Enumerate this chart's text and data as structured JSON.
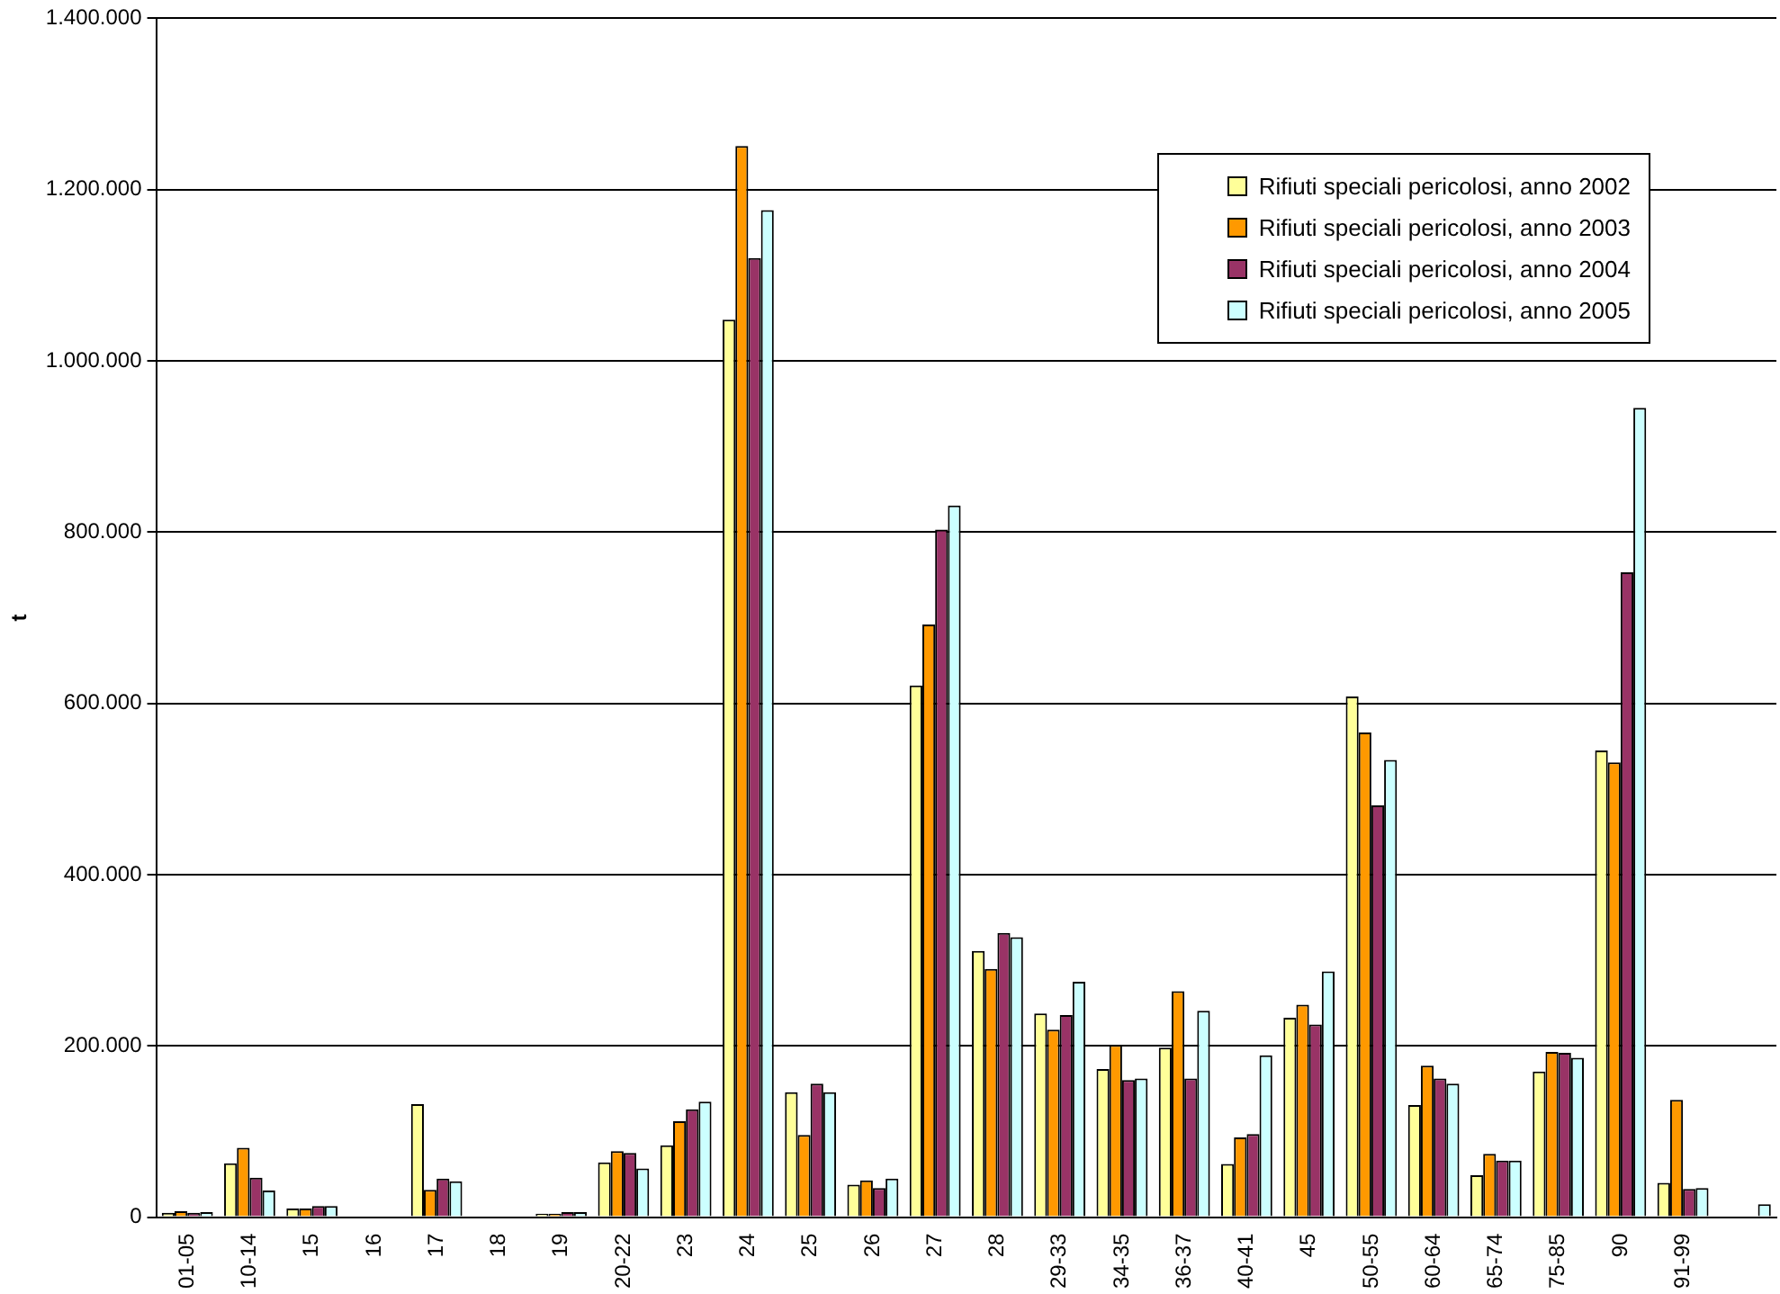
{
  "chart_data": {
    "type": "bar",
    "ylabel": "t",
    "categories": [
      "01-05",
      "10-14",
      "15",
      "16",
      "17",
      "18",
      "19",
      "20-22",
      "23",
      "24",
      "25",
      "26",
      "27",
      "28",
      "29-33",
      "34-35",
      "36-37",
      "40-41",
      "45",
      "50-55",
      "60-64",
      "65-74",
      "75-85",
      "90",
      "91-99",
      null
    ],
    "series": [
      {
        "name": "Rifiuti speciali pericolosi, anno 2002",
        "color": "#ffff99",
        "values": [
          5000,
          63000,
          10000,
          0,
          132000,
          null,
          4000,
          64000,
          84000,
          1048000,
          146000,
          38000,
          621000,
          311000,
          238000,
          173000,
          198000,
          62000,
          233000,
          608000,
          131000,
          49000,
          170000,
          545000,
          40000,
          null
        ]
      },
      {
        "name": "Rifiuti speciali pericolosi, anno 2003",
        "color": "#ff9900",
        "values": [
          7000,
          81000,
          10000,
          0,
          32000,
          null,
          4000,
          77000,
          112000,
          1251000,
          96000,
          43000,
          692000,
          290000,
          219000,
          201000,
          264000,
          93000,
          248000,
          566000,
          177000,
          74000,
          193000,
          531000,
          137000,
          null
        ]
      },
      {
        "name": "Rifiuti speciali pericolosi, anno 2004",
        "color": "#993366",
        "values": [
          5000,
          46000,
          13000,
          0,
          45000,
          null,
          6000,
          75000,
          126000,
          1120000,
          156000,
          34000,
          803000,
          332000,
          236000,
          160000,
          162000,
          97000,
          225000,
          481000,
          162000,
          66000,
          192000,
          753000,
          33000,
          null
        ]
      },
      {
        "name": "Rifiuti speciali pericolosi, anno 2005",
        "color": "#ccffff",
        "values": [
          6000,
          31000,
          13000,
          0,
          42000,
          null,
          6000,
          57000,
          135000,
          1176000,
          146000,
          45000,
          831000,
          327000,
          275000,
          162000,
          241000,
          189000,
          287000,
          534000,
          156000,
          66000,
          186000,
          945000,
          34000,
          15000
        ]
      }
    ],
    "ylim": [
      0,
      1400000
    ],
    "yticks": [
      {
        "value": 0,
        "label": "0"
      },
      {
        "value": 200000,
        "label": "200.000"
      },
      {
        "value": 400000,
        "label": "400.000"
      },
      {
        "value": 600000,
        "label": "600.000"
      },
      {
        "value": 800000,
        "label": "800.000"
      },
      {
        "value": 1000000,
        "label": "1.000.000"
      },
      {
        "value": 1200000,
        "label": "1.200.000"
      },
      {
        "value": 1400000,
        "label": "1.400.000"
      }
    ],
    "grid": "y",
    "legend": "top right"
  }
}
